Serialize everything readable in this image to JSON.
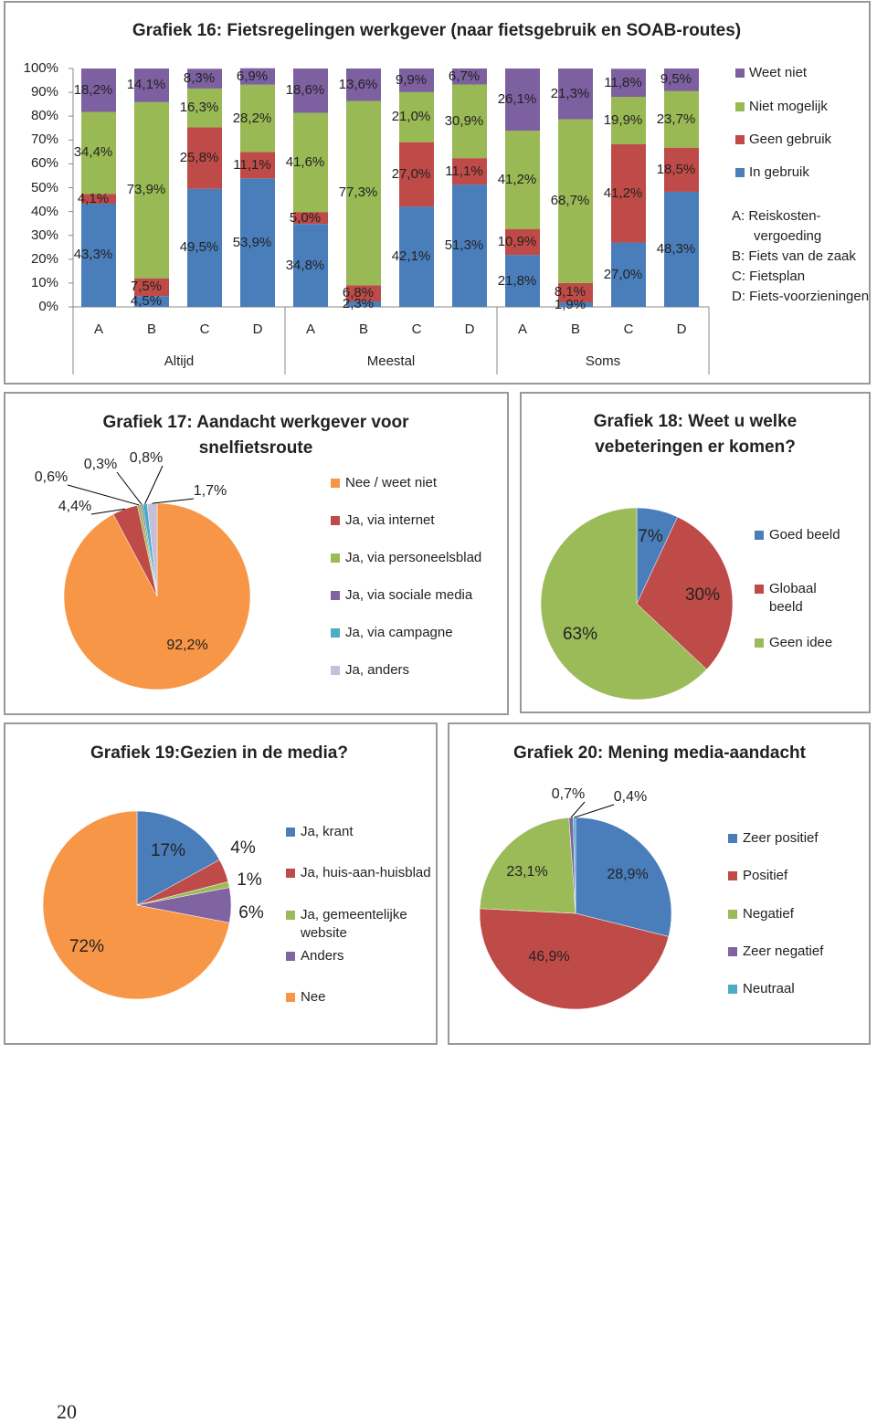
{
  "chart_data": [
    {
      "type": "bar",
      "stacked": true,
      "title": "Grafiek 16: Fietsregelingen werkgever (naar fietsgebruik en SOAB-routes)",
      "categories": [
        "A",
        "B",
        "C",
        "D",
        "A",
        "B",
        "C",
        "D",
        "A",
        "B",
        "C",
        "D"
      ],
      "groups": [
        "Altijd",
        "Meestal",
        "Soms"
      ],
      "series": [
        {
          "name": "Weet niet",
          "color": "#7d60a0",
          "values": [
            18.2,
            14.1,
            8.3,
            6.9,
            18.6,
            13.6,
            9.9,
            6.7,
            26.1,
            21.3,
            11.8,
            9.5
          ],
          "value_labels": [
            "18,2%",
            "14,1%",
            "8,3%",
            "6,9%",
            "18,6%",
            "13,6%",
            "9,9%",
            "6,7%",
            "26,1%",
            "21,3%",
            "11,8%",
            "9,5%"
          ]
        },
        {
          "name": "Niet mogelijk",
          "color": "#98b954",
          "values": [
            34.4,
            73.9,
            16.3,
            28.2,
            41.6,
            77.3,
            21.0,
            30.9,
            41.2,
            68.7,
            19.9,
            23.7
          ],
          "value_labels": [
            "34,4%",
            "73,9%",
            "16,3%",
            "28,2%",
            "41,6%",
            "77,3%",
            "21,0%",
            "30,9%",
            "41,2%",
            "68,7%",
            "19,9%",
            "23,7%"
          ]
        },
        {
          "name": "Geen gebruik",
          "color": "#be4b48",
          "values": [
            4.1,
            7.5,
            25.8,
            11.1,
            5.0,
            6.8,
            27.0,
            11.1,
            10.9,
            8.1,
            41.2,
            18.5
          ],
          "value_labels": [
            "4,1%",
            "7,5%",
            "25,8%",
            "11,1%",
            "5,0%",
            "6,8%",
            "27,0%",
            "11,1%",
            "10,9%",
            "8,1%",
            "41,2%",
            "18,5%"
          ]
        },
        {
          "name": "In gebruik",
          "color": "#4a7ebb",
          "values": [
            43.3,
            4.5,
            49.5,
            53.9,
            34.8,
            2.3,
            42.1,
            51.3,
            21.8,
            1.9,
            27.0,
            48.3
          ],
          "value_labels": [
            "43,3%",
            "4,5%",
            "49,5%",
            "53,9%",
            "34,8%",
            "2,3%",
            "42,1%",
            "51,3%",
            "21,8%",
            "1,9%",
            "27,0%",
            "48,3%"
          ]
        }
      ],
      "ylim": [
        0,
        100
      ],
      "yticks": [
        {
          "value": 0,
          "label": "0%"
        },
        {
          "value": 10,
          "label": "10%"
        },
        {
          "value": 20,
          "label": "20%"
        },
        {
          "value": 30,
          "label": "30%"
        },
        {
          "value": 40,
          "label": "40%"
        },
        {
          "value": 50,
          "label": "50%"
        },
        {
          "value": 60,
          "label": "60%"
        },
        {
          "value": 70,
          "label": "70%"
        },
        {
          "value": 80,
          "label": "80%"
        },
        {
          "value": 90,
          "label": "90%"
        },
        {
          "value": 100,
          "label": "100%"
        }
      ],
      "legend": "right",
      "notes": [
        "A: Reiskosten-vergoeding",
        "B: Fiets van de zaak",
        "C: Fietsplan",
        "D: Fiets-voorzieningen"
      ]
    },
    {
      "type": "pie",
      "title": "Grafiek 17: Aandacht werkgever voor snelfietsroute",
      "categories": [
        "Nee / weet niet",
        "Ja, via internet",
        "Ja, via personeelsblad",
        "Ja, via sociale media",
        "Ja, via campagne",
        "Ja, anders"
      ],
      "values": [
        92.2,
        4.4,
        0.6,
        0.3,
        0.8,
        1.7
      ],
      "value_labels": [
        "92,2%",
        "4,4%",
        "0,6%",
        "0,3%",
        "0,8%",
        "1,7%"
      ],
      "colors": [
        "#f79646",
        "#be4b48",
        "#9bbb59",
        "#8064a2",
        "#4bacc6",
        "#c6bedb"
      ],
      "legend": "right"
    },
    {
      "type": "pie",
      "title": "Grafiek 18: Weet u welke vebeteringen er komen?",
      "categories": [
        "Goed beeld",
        "Globaal beeld",
        "Geen idee"
      ],
      "values": [
        7,
        30,
        63
      ],
      "value_labels": [
        "7%",
        "30%",
        "63%"
      ],
      "colors": [
        "#4a7ebb",
        "#be4b48",
        "#9bbb59"
      ],
      "legend": "right"
    },
    {
      "type": "pie",
      "title": "Grafiek 19:Gezien in de media?",
      "categories": [
        "Ja, krant",
        "Ja, huis-aan-huisblad",
        "Ja, gemeentelijke website",
        "Anders",
        "Nee"
      ],
      "values": [
        17,
        4,
        1,
        6,
        72
      ],
      "value_labels": [
        "17%",
        "4%",
        "1%",
        "6%",
        "72%"
      ],
      "colors": [
        "#4a7ebb",
        "#be4b48",
        "#9bbb59",
        "#8064a2",
        "#f79646"
      ],
      "legend": "right"
    },
    {
      "type": "pie",
      "title": "Grafiek 20: Mening media-aandacht",
      "categories": [
        "Zeer positief",
        "Positief",
        "Negatief",
        "Zeer negatief",
        "Neutraal"
      ],
      "values": [
        28.9,
        46.9,
        23.1,
        0.7,
        0.4
      ],
      "value_labels": [
        "28,9%",
        "46,9%",
        "23,1%",
        "0,7%",
        "0,4%"
      ],
      "colors": [
        "#4a7ebb",
        "#be4b48",
        "#9bbb59",
        "#8064a2",
        "#4bacc6"
      ],
      "legend": "right"
    }
  ],
  "page_number": 20
}
